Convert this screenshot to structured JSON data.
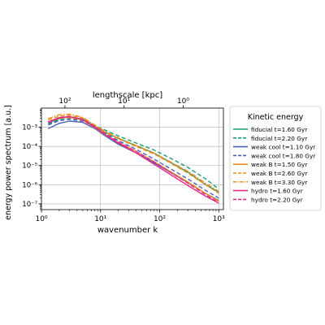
{
  "chart_data": {
    "type": "line",
    "xlabel": "wavenumber k",
    "ylabel": "energy power spectrum [a.u.]",
    "top_axis_label": "lengthscale [kpc]",
    "xscale": "log",
    "yscale": "log",
    "xlim": [
      1,
      1200
    ],
    "ylim": [
      5e-08,
      0.01
    ],
    "grid": true,
    "x_ticks": [
      {
        "value": 1,
        "label": "10⁰"
      },
      {
        "value": 10,
        "label": "10¹"
      },
      {
        "value": 100,
        "label": "10²"
      },
      {
        "value": 1000,
        "label": "10³"
      }
    ],
    "y_ticks": [
      {
        "value": 1e-07,
        "label": "10⁻⁷"
      },
      {
        "value": 1e-06,
        "label": "10⁻⁶"
      },
      {
        "value": 1e-05,
        "label": "10⁻⁵"
      },
      {
        "value": 0.0001,
        "label": "10⁻⁴"
      },
      {
        "value": 0.001,
        "label": "10⁻³"
      }
    ],
    "top_ticks": [
      {
        "k": 2.5,
        "label": "10²"
      },
      {
        "k": 25,
        "label": "10¹"
      },
      {
        "k": 250,
        "label": "10⁰"
      }
    ],
    "legend": {
      "title": "Kinetic energy",
      "placement": "right"
    },
    "series": [
      {
        "name": "fiducial t=1.60 Gyr",
        "color": "#1b9e77",
        "dash": "solid",
        "x": [
          1.3,
          2,
          3,
          5,
          8,
          12,
          20,
          40,
          80,
          150,
          300,
          600,
          1000
        ],
        "y": [
          0.0016,
          0.0028,
          0.0035,
          0.0027,
          0.0011,
          0.00055,
          0.00026,
          0.00011,
          4.5e-05,
          1.5e-05,
          4.5e-06,
          1e-06,
          4e-07
        ]
      },
      {
        "name": "fiducial t=2.20 Gyr",
        "color": "#1b9e77",
        "dash": "dashed",
        "x": [
          1.3,
          2,
          3,
          5,
          8,
          12,
          20,
          40,
          80,
          150,
          300,
          600,
          1000
        ],
        "y": [
          0.0015,
          0.0024,
          0.0028,
          0.0024,
          0.0012,
          0.0007,
          0.00035,
          0.00015,
          6.5e-05,
          2.5e-05,
          8e-06,
          2e-06,
          6e-07
        ]
      },
      {
        "name": "weak cool t=1.10 Gyr",
        "color": "#4c5fb8",
        "dash": "solid",
        "x": [
          1.3,
          2,
          3,
          5,
          8,
          12,
          20,
          40,
          80,
          150,
          300,
          600,
          1000
        ],
        "y": [
          0.00085,
          0.0016,
          0.0021,
          0.0018,
          0.00085,
          0.00035,
          0.00013,
          4.5e-05,
          1.4e-05,
          4.5e-06,
          1.3e-06,
          3.5e-07,
          1.5e-07
        ]
      },
      {
        "name": "weak cool t=1.80 Gyr",
        "color": "#4c5fb8",
        "dash": "dashed",
        "x": [
          1.3,
          2,
          3,
          5,
          8,
          12,
          20,
          40,
          80,
          150,
          300,
          600,
          1000
        ],
        "y": [
          0.0013,
          0.0022,
          0.0026,
          0.0021,
          0.0011,
          0.0005,
          0.0002,
          7e-05,
          2.2e-05,
          7e-06,
          2e-06,
          5e-07,
          2e-07
        ]
      },
      {
        "name": "weak B t=1.50 Gyr",
        "color": "#f28e1c",
        "dash": "solid",
        "x": [
          1.3,
          2,
          3,
          5,
          8,
          12,
          20,
          40,
          80,
          150,
          300,
          600,
          1000
        ],
        "y": [
          0.0018,
          0.003,
          0.0033,
          0.0024,
          0.00095,
          0.0004,
          0.00016,
          5.5e-05,
          1.6e-05,
          5e-06,
          1.4e-06,
          3.5e-07,
          1.4e-07
        ]
      },
      {
        "name": "weak B t=2.60 Gyr",
        "color": "#f28e1c",
        "dash": "dashed",
        "x": [
          1.3,
          2,
          3,
          5,
          8,
          12,
          20,
          40,
          80,
          150,
          300,
          600,
          1000
        ],
        "y": [
          0.0024,
          0.0038,
          0.0042,
          0.003,
          0.0012,
          0.00055,
          0.00025,
          0.0001,
          4e-05,
          1.4e-05,
          4e-06,
          1e-06,
          3.5e-07
        ]
      },
      {
        "name": "weak B t=3.30 Gyr",
        "color": "#f28e1c",
        "dash": "dashdot",
        "x": [
          1.3,
          2,
          3,
          5,
          8,
          12,
          20,
          40,
          80,
          150,
          300,
          600,
          1000
        ],
        "y": [
          0.0028,
          0.0045,
          0.0048,
          0.0033,
          0.0013,
          0.0006,
          0.00028,
          0.00011,
          4.5e-05,
          1.6e-05,
          5e-06,
          1.2e-06,
          4.5e-07
        ]
      },
      {
        "name": "hydro t=1.60 Gyr",
        "color": "#e7298a",
        "dash": "solid",
        "x": [
          1.3,
          2,
          3,
          5,
          8,
          12,
          20,
          40,
          80,
          150,
          300,
          600,
          1000
        ],
        "y": [
          0.0019,
          0.0032,
          0.0036,
          0.0025,
          0.001,
          0.00042,
          0.00015,
          4.5e-05,
          1.2e-05,
          3.5e-06,
          9e-07,
          2.5e-07,
          1.1e-07
        ]
      },
      {
        "name": "hydro t=2.20 Gyr",
        "color": "#e7298a",
        "dash": "dashed",
        "x": [
          1.3,
          2,
          3,
          5,
          8,
          12,
          20,
          40,
          80,
          150,
          300,
          600,
          1000
        ],
        "y": [
          0.0017,
          0.003,
          0.0035,
          0.0026,
          0.0011,
          0.00045,
          0.00017,
          5.5e-05,
          1.6e-05,
          4.5e-06,
          1.2e-06,
          3e-07,
          1.2e-07
        ]
      }
    ]
  }
}
